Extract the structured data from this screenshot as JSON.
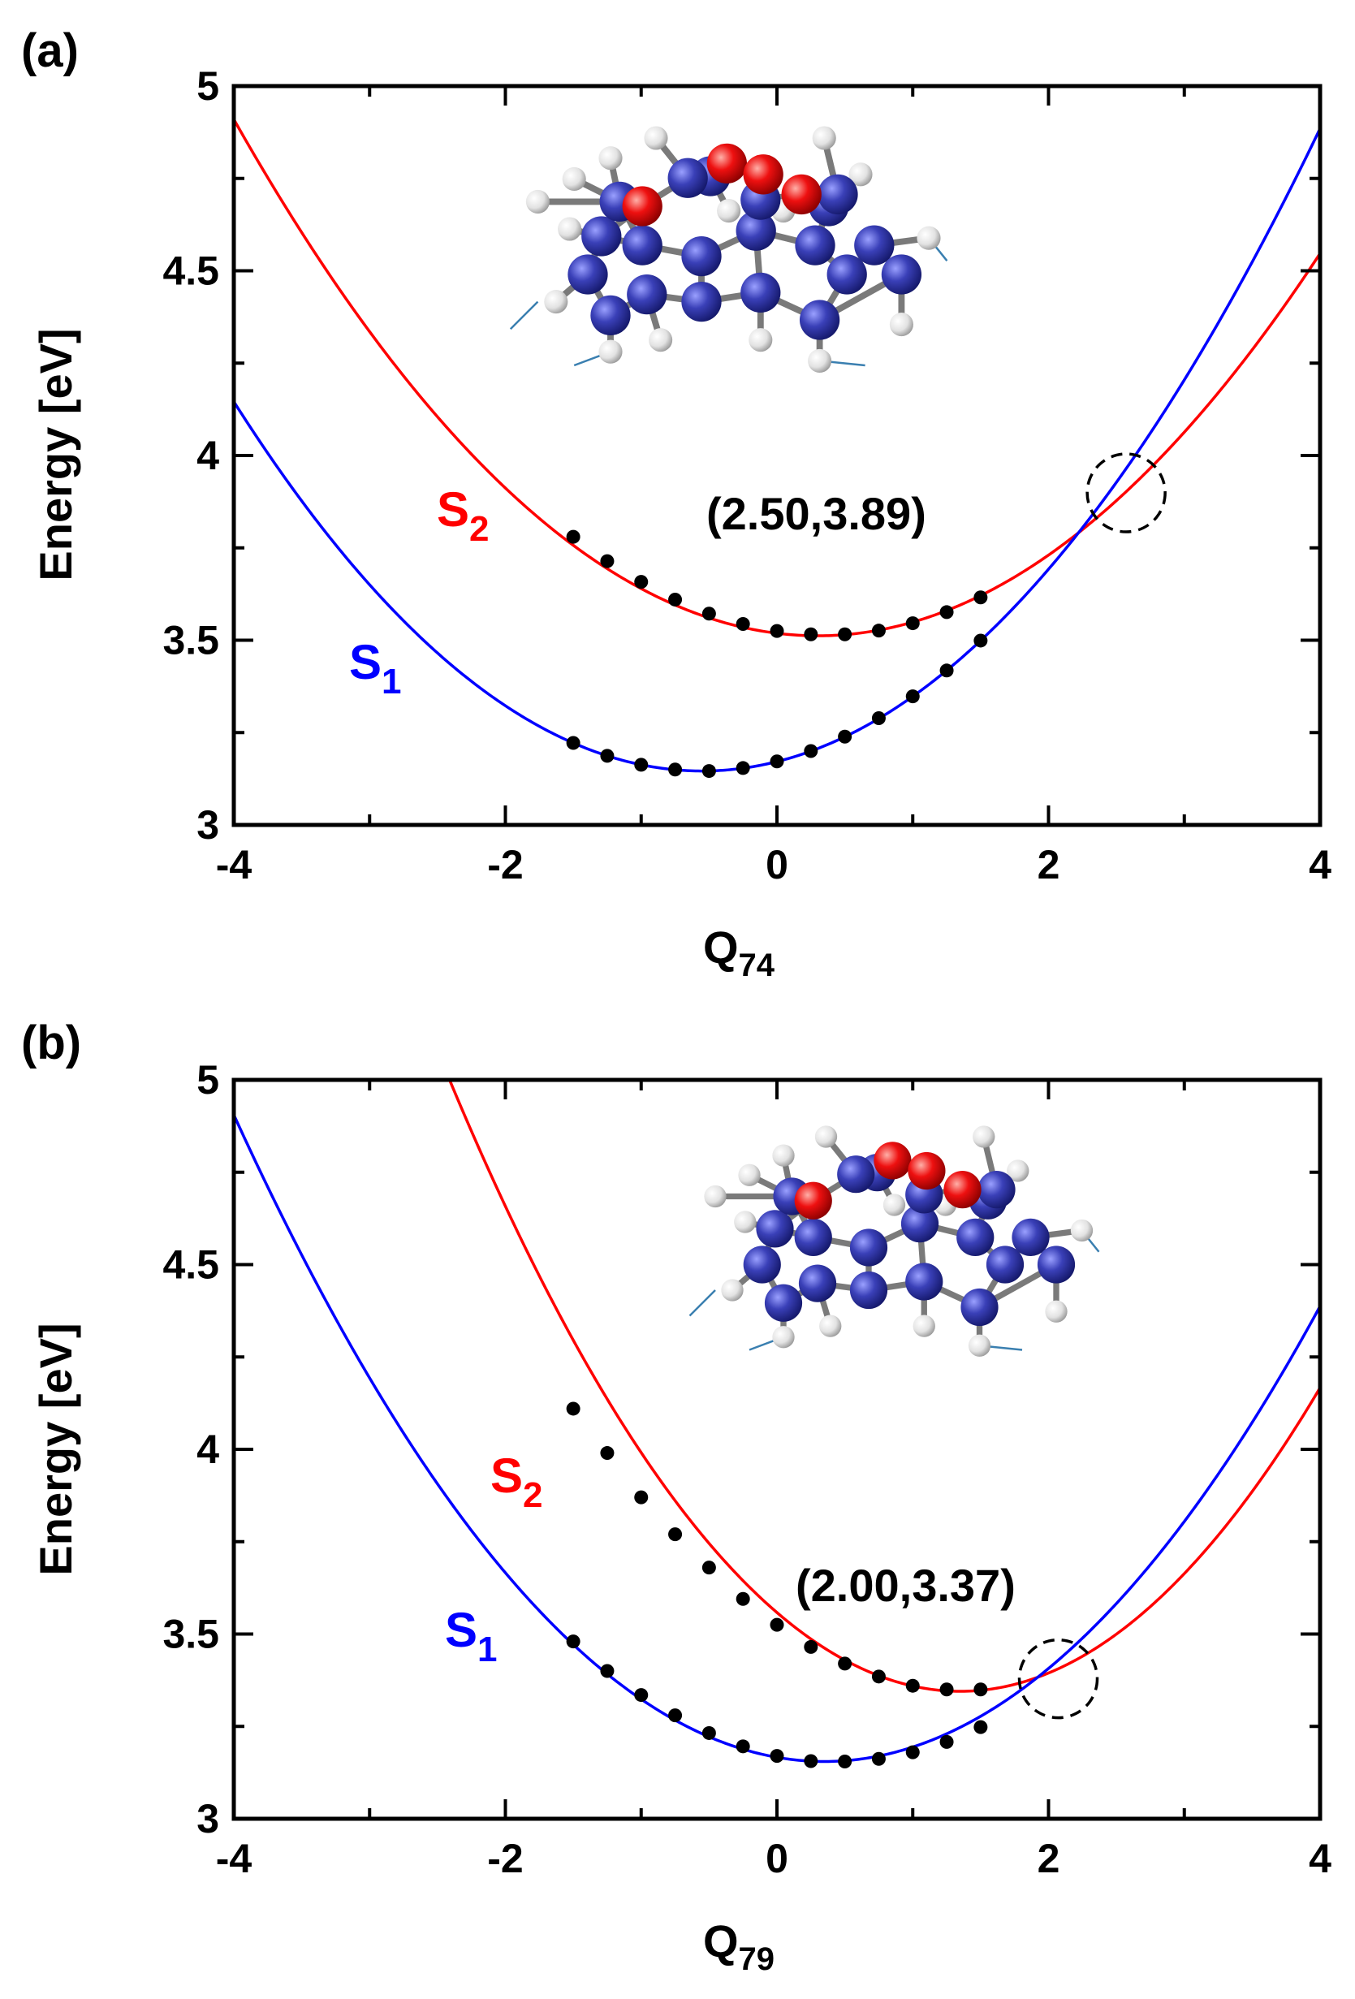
{
  "chart_data": [
    {
      "type": "line",
      "panel_label": "(a)",
      "xlabel": "Q",
      "xlabel_sub": "74",
      "ylabel": "Energy [eV]",
      "xlim": [
        -4,
        4
      ],
      "ylim": [
        3,
        5
      ],
      "xticks": [
        -4,
        -2,
        0,
        2,
        4
      ],
      "xtick_labels": [
        "-4",
        "-2",
        "0",
        "2",
        "4"
      ],
      "yticks": [
        3,
        3.5,
        4,
        4.5,
        5
      ],
      "ytick_labels": [
        "3",
        "3.5",
        "4",
        "4.5",
        "5"
      ],
      "series": [
        {
          "name": "S",
          "sub": "2",
          "color": "#ff0000",
          "curve": {
            "a": 0.0756,
            "x0": 0.3,
            "y0": 3.512
          },
          "points_x": [
            -1.5,
            -1.25,
            -1.0,
            -0.75,
            -0.5,
            -0.25,
            0.0,
            0.25,
            0.5,
            0.75,
            1.0,
            1.25,
            1.5
          ],
          "points_y": [
            3.78,
            3.714,
            3.658,
            3.61,
            3.572,
            3.544,
            3.525,
            3.516,
            3.516,
            3.526,
            3.546,
            3.576,
            3.616
          ]
        },
        {
          "name": "S",
          "sub": "1",
          "color": "#0000ff",
          "curve": {
            "a": 0.084,
            "x0": -0.55,
            "y0": 3.146
          },
          "points_x": [
            -1.5,
            -1.25,
            -1.0,
            -0.75,
            -0.5,
            -0.25,
            0.0,
            0.25,
            0.5,
            0.75,
            1.0,
            1.25,
            1.5
          ],
          "points_y": [
            3.222,
            3.187,
            3.163,
            3.15,
            3.146,
            3.154,
            3.172,
            3.2,
            3.239,
            3.289,
            3.348,
            3.418,
            3.499
          ]
        }
      ],
      "annotation": "(2.50,3.89)",
      "crossing": {
        "x": 2.5,
        "y": 3.89
      }
    },
    {
      "type": "line",
      "panel_label": "(b)",
      "xlabel": "Q",
      "xlabel_sub": "79",
      "ylabel": "Energy [eV]",
      "xlim": [
        -4,
        4
      ],
      "ylim": [
        3,
        5
      ],
      "xticks": [
        -4,
        -2,
        0,
        2,
        4
      ],
      "xtick_labels": [
        "-4",
        "-2",
        "0",
        "2",
        "4"
      ],
      "yticks": [
        3,
        3.5,
        4,
        4.5,
        5
      ],
      "ytick_labels": [
        "3",
        "3.5",
        "4",
        "4.5",
        "5"
      ],
      "series": [
        {
          "name": "S",
          "sub": "2",
          "color": "#ff0000",
          "curve": {
            "a": 0.117,
            "x0": 1.35,
            "y0": 3.345
          },
          "points_x": [
            -1.5,
            -1.25,
            -1.0,
            -0.75,
            -0.5,
            -0.25,
            0.0,
            0.25,
            0.5,
            0.75,
            1.0,
            1.25,
            1.5
          ],
          "points_y": [
            4.11,
            3.99,
            3.87,
            3.77,
            3.68,
            3.595,
            3.525,
            3.465,
            3.42,
            3.385,
            3.36,
            3.35,
            3.35
          ]
        },
        {
          "name": "S",
          "sub": "1",
          "color": "#0000ff",
          "curve": {
            "a": 0.0925,
            "x0": 0.35,
            "y0": 3.155
          },
          "points_x": [
            -1.5,
            -1.25,
            -1.0,
            -0.75,
            -0.5,
            -0.25,
            0.0,
            0.25,
            0.5,
            0.75,
            1.0,
            1.25,
            1.5
          ],
          "points_y": [
            3.48,
            3.4,
            3.335,
            3.28,
            3.232,
            3.196,
            3.17,
            3.156,
            3.155,
            3.162,
            3.18,
            3.208,
            3.248
          ]
        }
      ],
      "annotation": "(2.00,3.37)",
      "crossing": {
        "x": 2.0,
        "y": 3.37
      }
    }
  ],
  "colors": {
    "carbon": "#2a2f9e",
    "oxygen": "#e8000a",
    "hydrogen": "#e6e6e6",
    "bond": "#7a7a7a",
    "vector": "#3a7fb0"
  }
}
